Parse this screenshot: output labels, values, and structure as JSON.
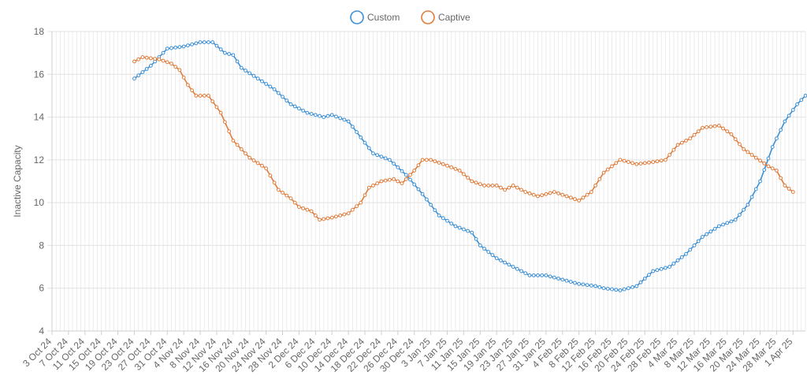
{
  "chart_data": {
    "type": "line",
    "title": "",
    "xlabel": "",
    "ylabel": "Inactive Capacity",
    "ylim": [
      4,
      18
    ],
    "yticks": [
      4,
      6,
      8,
      10,
      12,
      14,
      16,
      18
    ],
    "grid": true,
    "legend_position": "top",
    "x_start": "2024-10-03",
    "x_end": "2025-04-04",
    "x_tick_labels": [
      "3 Oct 24",
      "7 Oct 24",
      "11 Oct 24",
      "15 Oct 24",
      "19 Oct 24",
      "23 Oct 24",
      "27 Oct 24",
      "31 Oct 24",
      "4 Nov 24",
      "8 Nov 24",
      "12 Nov 24",
      "16 Nov 24",
      "20 Nov 24",
      "24 Nov 24",
      "28 Nov 24",
      "2 Dec 24",
      "6 Dec 24",
      "10 Dec 24",
      "14 Dec 24",
      "18 Dec 24",
      "22 Dec 24",
      "26 Dec 24",
      "30 Dec 24",
      "3 Jan 25",
      "7 Jan 25",
      "11 Jan 25",
      "15 Jan 25",
      "19 Jan 25",
      "23 Jan 25",
      "27 Jan 25",
      "31 Jan 25",
      "4 Feb 25",
      "8 Feb 25",
      "12 Feb 25",
      "16 Feb 25",
      "20 Feb 25",
      "24 Feb 25",
      "28 Feb 25",
      "4 Mar 25",
      "8 Mar 25",
      "12 Mar 25",
      "16 Mar 25",
      "20 Mar 25",
      "24 Mar 25",
      "28 Mar 25",
      "1 Apr 25"
    ],
    "series": [
      {
        "name": "Custom",
        "color": "#3a8fd6",
        "points": [
          [
            "2024-10-23",
            15.8
          ],
          [
            "2024-10-27",
            16.4
          ],
          [
            "2024-10-31",
            17.2
          ],
          [
            "2024-11-04",
            17.3
          ],
          [
            "2024-11-08",
            17.5
          ],
          [
            "2024-11-11",
            17.5
          ],
          [
            "2024-11-14",
            17.0
          ],
          [
            "2024-11-16",
            16.9
          ],
          [
            "2024-11-18",
            16.3
          ],
          [
            "2024-11-22",
            15.8
          ],
          [
            "2024-11-26",
            15.3
          ],
          [
            "2024-11-30",
            14.6
          ],
          [
            "2024-12-04",
            14.2
          ],
          [
            "2024-12-08",
            14.0
          ],
          [
            "2024-12-10",
            14.1
          ],
          [
            "2024-12-14",
            13.8
          ],
          [
            "2024-12-18",
            12.8
          ],
          [
            "2024-12-20",
            12.3
          ],
          [
            "2024-12-24",
            12.0
          ],
          [
            "2024-12-28",
            11.3
          ],
          [
            "2025-01-01",
            10.4
          ],
          [
            "2025-01-05",
            9.4
          ],
          [
            "2025-01-09",
            8.9
          ],
          [
            "2025-01-13",
            8.6
          ],
          [
            "2025-01-15",
            8.0
          ],
          [
            "2025-01-19",
            7.4
          ],
          [
            "2025-01-23",
            7.0
          ],
          [
            "2025-01-27",
            6.6
          ],
          [
            "2025-01-31",
            6.6
          ],
          [
            "2025-02-04",
            6.4
          ],
          [
            "2025-02-08",
            6.2
          ],
          [
            "2025-02-12",
            6.1
          ],
          [
            "2025-02-14",
            6.0
          ],
          [
            "2025-02-18",
            5.9
          ],
          [
            "2025-02-22",
            6.1
          ],
          [
            "2025-02-26",
            6.8
          ],
          [
            "2025-03-02",
            7.0
          ],
          [
            "2025-03-06",
            7.6
          ],
          [
            "2025-03-10",
            8.4
          ],
          [
            "2025-03-14",
            8.9
          ],
          [
            "2025-03-18",
            9.2
          ],
          [
            "2025-03-21",
            9.9
          ],
          [
            "2025-03-24",
            11.0
          ],
          [
            "2025-03-27",
            12.6
          ],
          [
            "2025-03-30",
            13.8
          ],
          [
            "2025-04-02",
            14.6
          ],
          [
            "2025-04-05",
            15.2
          ],
          [
            "2025-04-07",
            15.5
          ]
        ]
      },
      {
        "name": "Captive",
        "color": "#e07b39",
        "points": [
          [
            "2024-10-23",
            16.6
          ],
          [
            "2024-10-25",
            16.8
          ],
          [
            "2024-10-29",
            16.7
          ],
          [
            "2024-11-01",
            16.5
          ],
          [
            "2024-11-03",
            16.2
          ],
          [
            "2024-11-05",
            15.5
          ],
          [
            "2024-11-07",
            15.0
          ],
          [
            "2024-11-10",
            15.0
          ],
          [
            "2024-11-13",
            14.2
          ],
          [
            "2024-11-16",
            12.9
          ],
          [
            "2024-11-18",
            12.5
          ],
          [
            "2024-11-20",
            12.1
          ],
          [
            "2024-11-24",
            11.6
          ],
          [
            "2024-11-27",
            10.6
          ],
          [
            "2024-11-30",
            10.2
          ],
          [
            "2024-12-02",
            9.8
          ],
          [
            "2024-12-05",
            9.6
          ],
          [
            "2024-12-07",
            9.2
          ],
          [
            "2024-12-10",
            9.3
          ],
          [
            "2024-12-14",
            9.5
          ],
          [
            "2024-12-17",
            10.0
          ],
          [
            "2024-12-19",
            10.7
          ],
          [
            "2024-12-22",
            11.0
          ],
          [
            "2024-12-25",
            11.1
          ],
          [
            "2024-12-27",
            10.9
          ],
          [
            "2024-12-30",
            11.5
          ],
          [
            "2025-01-01",
            12.0
          ],
          [
            "2025-01-03",
            12.0
          ],
          [
            "2025-01-06",
            11.8
          ],
          [
            "2025-01-10",
            11.5
          ],
          [
            "2025-01-13",
            11.0
          ],
          [
            "2025-01-16",
            10.8
          ],
          [
            "2025-01-19",
            10.8
          ],
          [
            "2025-01-21",
            10.6
          ],
          [
            "2025-01-23",
            10.8
          ],
          [
            "2025-01-26",
            10.5
          ],
          [
            "2025-01-29",
            10.3
          ],
          [
            "2025-02-02",
            10.5
          ],
          [
            "2025-02-05",
            10.3
          ],
          [
            "2025-02-08",
            10.1
          ],
          [
            "2025-02-11",
            10.5
          ],
          [
            "2025-02-14",
            11.4
          ],
          [
            "2025-02-18",
            12.0
          ],
          [
            "2025-02-22",
            11.8
          ],
          [
            "2025-02-26",
            11.9
          ],
          [
            "2025-03-01",
            12.0
          ],
          [
            "2025-03-04",
            12.7
          ],
          [
            "2025-03-07",
            13.0
          ],
          [
            "2025-03-10",
            13.5
          ],
          [
            "2025-03-14",
            13.6
          ],
          [
            "2025-03-17",
            13.2
          ],
          [
            "2025-03-20",
            12.5
          ],
          [
            "2025-03-23",
            12.1
          ],
          [
            "2025-03-26",
            11.7
          ],
          [
            "2025-03-28",
            11.5
          ],
          [
            "2025-03-30",
            10.8
          ],
          [
            "2025-04-01",
            10.5
          ]
        ]
      }
    ]
  }
}
